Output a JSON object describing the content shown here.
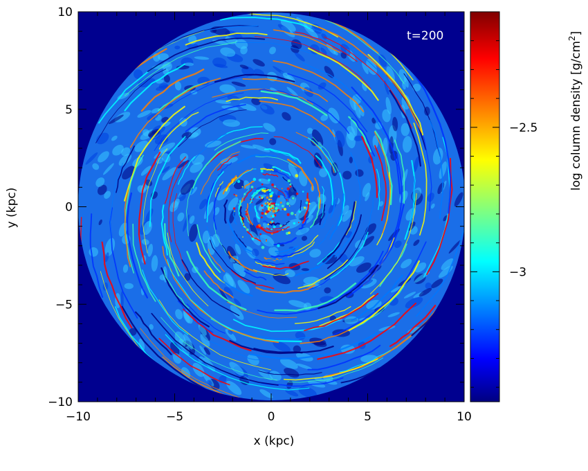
{
  "chart_data": {
    "type": "heatmap",
    "title": "",
    "annotation": "t=200",
    "xlabel": "x (kpc)",
    "ylabel": "y (kpc)",
    "xlim": [
      -10,
      10
    ],
    "ylim": [
      -10,
      10
    ],
    "x_ticks": [
      -10,
      -5,
      0,
      5,
      10
    ],
    "y_ticks": [
      -10,
      -5,
      0,
      5,
      10
    ],
    "x_tick_labels": [
      "−10",
      "−5",
      "0",
      "5",
      "10"
    ],
    "y_tick_labels": [
      "−10",
      "−5",
      "0",
      "5",
      "10"
    ],
    "disk_radius_kpc": 10,
    "colorbar": {
      "label_main": "log column density [g/cm",
      "label_sup": "2",
      "label_end": "]",
      "range": [
        -3.45,
        -2.1
      ],
      "ticks": [
        -3,
        -2.5
      ],
      "tick_labels": [
        "−3",
        "−2.5"
      ],
      "colormap": "jet"
    },
    "colors": {
      "background": "#00008f",
      "low": "#000080",
      "mid": "#00ffff",
      "high": "#ff0000",
      "max": "#800000"
    }
  }
}
